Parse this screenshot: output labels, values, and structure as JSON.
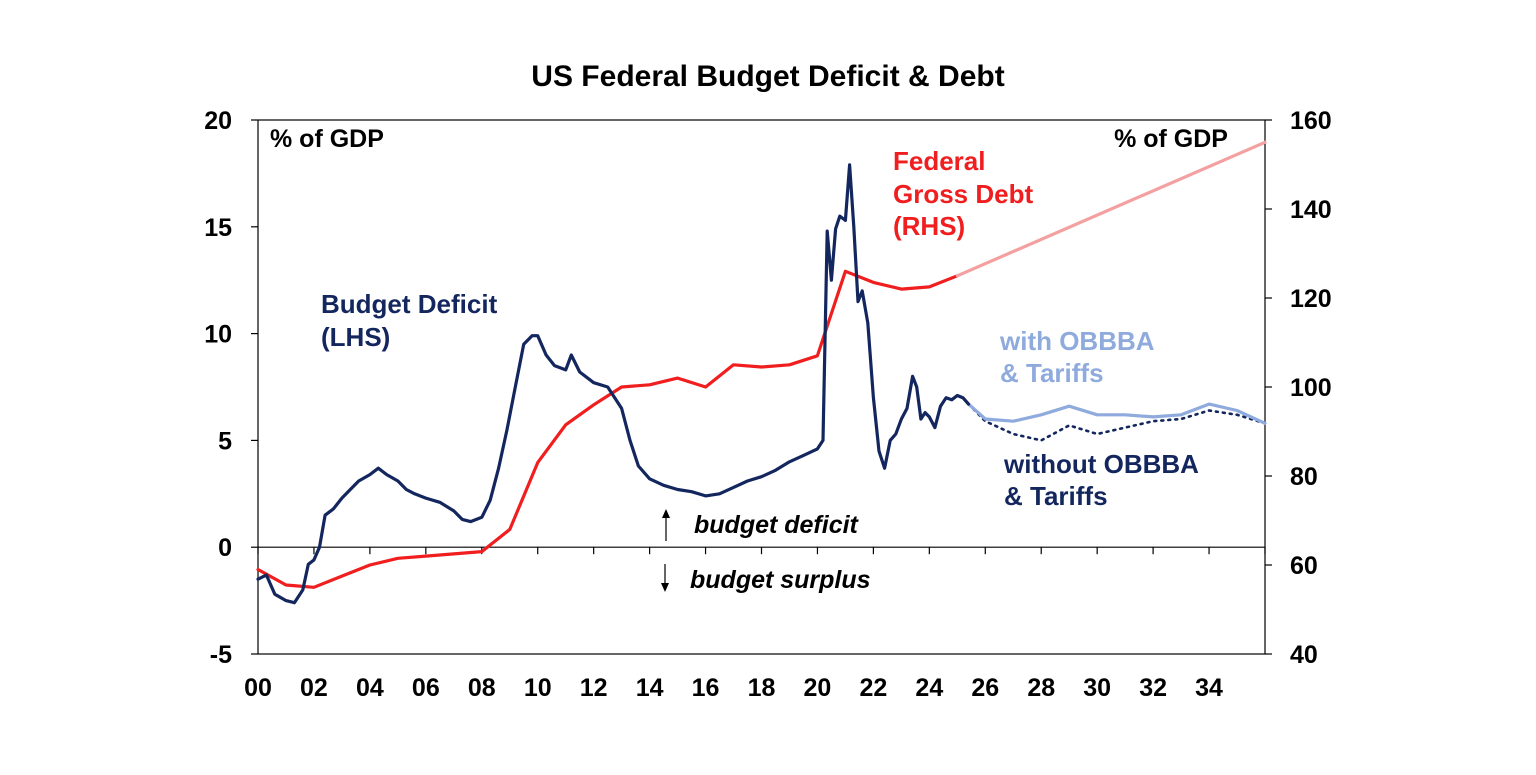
{
  "chart_data": {
    "type": "line",
    "title": "US Federal Budget Deficit & Debt",
    "ylabel_left": "% of GDP",
    "ylabel_right": "% of GDP",
    "ylim_left": [
      -5,
      20
    ],
    "ylim_right": [
      40,
      160
    ],
    "xlim": [
      2000,
      2036
    ],
    "y_ticks_left": [
      "-5",
      "0",
      "5",
      "10",
      "15",
      "20"
    ],
    "y_ticks_right": [
      "40",
      "60",
      "80",
      "100",
      "120",
      "140",
      "160"
    ],
    "x_ticks": [
      "00",
      "02",
      "04",
      "06",
      "08",
      "10",
      "12",
      "14",
      "16",
      "18",
      "20",
      "22",
      "24",
      "26",
      "28",
      "30",
      "32",
      "34"
    ],
    "colors": {
      "deficit": "#13265e",
      "debt": "#f01e1e",
      "debt_projection": "#f4a0a0",
      "with_obbba": "#8faadc",
      "without_obbba": "#13265e"
    },
    "annotations": {
      "deficit_label": [
        "Budget Deficit",
        "(LHS)"
      ],
      "debt_label": [
        "Federal",
        "Gross Debt",
        "(RHS)"
      ],
      "with_label": [
        "with OBBBA",
        "& Tariffs"
      ],
      "without_label": [
        "without OBBBA",
        "& Tariffs"
      ],
      "budget_deficit": "budget deficit",
      "budget_surplus": "budget surplus"
    },
    "series": [
      {
        "name": "Budget Deficit (LHS)",
        "axis": "left",
        "x": [
          2000.0,
          2000.3,
          2000.6,
          2001.0,
          2001.3,
          2001.6,
          2001.8,
          2002.0,
          2002.2,
          2002.4,
          2002.7,
          2003.0,
          2003.3,
          2003.6,
          2004.0,
          2004.3,
          2004.6,
          2005.0,
          2005.3,
          2005.6,
          2006.0,
          2006.5,
          2007.0,
          2007.3,
          2007.6,
          2008.0,
          2008.3,
          2008.6,
          2008.9,
          2009.2,
          2009.5,
          2009.8,
          2010.0,
          2010.3,
          2010.6,
          2011.0,
          2011.2,
          2011.5,
          2012.0,
          2012.5,
          2013.0,
          2013.3,
          2013.6,
          2014.0,
          2014.5,
          2015.0,
          2015.5,
          2016.0,
          2016.5,
          2017.0,
          2017.5,
          2018.0,
          2018.5,
          2019.0,
          2019.5,
          2020.0,
          2020.2,
          2020.35,
          2020.5,
          2020.65,
          2020.8,
          2021.0,
          2021.15,
          2021.3,
          2021.45,
          2021.6,
          2021.8,
          2022.0,
          2022.2,
          2022.4,
          2022.6,
          2022.8,
          2023.0,
          2023.2,
          2023.4,
          2023.55,
          2023.7,
          2023.85,
          2024.0,
          2024.2,
          2024.4,
          2024.6,
          2024.8,
          2025.0,
          2025.2,
          2025.4
        ],
        "values": [
          -1.5,
          -1.3,
          -2.2,
          -2.5,
          -2.6,
          -2.0,
          -0.8,
          -0.6,
          0.0,
          1.5,
          1.8,
          2.3,
          2.7,
          3.1,
          3.4,
          3.7,
          3.4,
          3.1,
          2.7,
          2.5,
          2.3,
          2.1,
          1.7,
          1.3,
          1.2,
          1.4,
          2.2,
          3.7,
          5.5,
          7.5,
          9.5,
          9.9,
          9.9,
          9.0,
          8.5,
          8.3,
          9.0,
          8.2,
          7.7,
          7.5,
          6.5,
          5.0,
          3.8,
          3.2,
          2.9,
          2.7,
          2.6,
          2.4,
          2.5,
          2.8,
          3.1,
          3.3,
          3.6,
          4.0,
          4.3,
          4.6,
          5.0,
          14.8,
          12.5,
          14.9,
          15.5,
          15.3,
          17.9,
          15.0,
          11.5,
          12.0,
          10.5,
          7.0,
          4.5,
          3.7,
          5.0,
          5.3,
          6.0,
          6.5,
          8.0,
          7.5,
          6.0,
          6.3,
          6.1,
          5.6,
          6.6,
          7.0,
          6.9,
          7.1,
          7.0,
          6.7
        ]
      },
      {
        "name": "Federal Gross Debt (RHS)",
        "axis": "right",
        "x": [
          2000,
          2001,
          2002,
          2003,
          2004,
          2005,
          2006,
          2007,
          2008,
          2009,
          2010,
          2011,
          2012,
          2013,
          2014,
          2015,
          2016,
          2017,
          2018,
          2019,
          2020,
          2021,
          2022,
          2023,
          2024,
          2025
        ],
        "values": [
          59,
          55.5,
          55,
          57.5,
          60,
          61.5,
          62,
          62.5,
          63,
          68,
          83,
          91.5,
          96,
          100,
          100.5,
          102,
          100,
          105,
          104.5,
          105,
          107,
          126,
          123.5,
          122,
          122.5,
          125
        ]
      },
      {
        "name": "Federal Gross Debt projection (RHS)",
        "axis": "right",
        "x": [
          2025,
          2036
        ],
        "values": [
          125,
          155
        ]
      },
      {
        "name": "with OBBBA & Tariffs",
        "axis": "left",
        "x": [
          2025.4,
          2026,
          2027,
          2028,
          2029,
          2030,
          2031,
          2032,
          2033,
          2034,
          2035,
          2036
        ],
        "values": [
          6.7,
          6.0,
          5.9,
          6.2,
          6.6,
          6.2,
          6.2,
          6.1,
          6.2,
          6.7,
          6.4,
          5.8
        ]
      },
      {
        "name": "without OBBBA & Tariffs",
        "axis": "left",
        "x": [
          2025.4,
          2026,
          2027,
          2028,
          2029,
          2030,
          2031,
          2032,
          2033,
          2034,
          2035,
          2036
        ],
        "values": [
          6.7,
          5.9,
          5.3,
          5.0,
          5.7,
          5.3,
          5.6,
          5.9,
          6.0,
          6.4,
          6.2,
          5.8
        ]
      }
    ]
  }
}
